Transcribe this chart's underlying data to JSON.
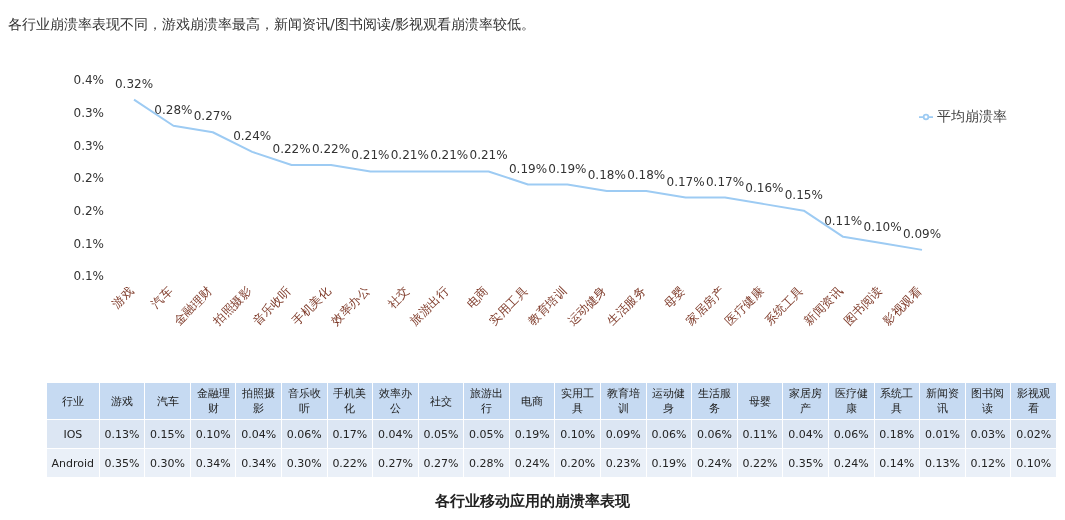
{
  "chart_data": [
    {
      "type": "line",
      "title": "各行业崩溃率表现不同，游戏崩溃率最高，新闻资讯/图书阅读/影视观看崩溃率较低。",
      "categories": [
        "游戏",
        "汽车",
        "金融理财",
        "拍照摄影",
        "音乐收听",
        "手机美化",
        "效率办公",
        "社交",
        "旅游出行",
        "电商",
        "实用工具",
        "教育培训",
        "运动健身",
        "生活服务",
        "母婴",
        "家居房产",
        "医疗健康",
        "系统工具",
        "新闻资讯",
        "图书阅读",
        "影视观看"
      ],
      "series": [
        {
          "name": "平均崩溃率",
          "color": "#9dcbf3",
          "values": [
            0.32,
            0.28,
            0.27,
            0.24,
            0.22,
            0.22,
            0.21,
            0.21,
            0.21,
            0.21,
            0.19,
            0.19,
            0.18,
            0.18,
            0.17,
            0.17,
            0.16,
            0.15,
            0.11,
            0.1,
            0.09
          ],
          "value_labels": [
            "0.32%",
            "0.28%",
            "0.27%",
            "0.24%",
            "0.22%",
            "0.22%",
            "0.21%",
            "0.21%",
            "0.21%",
            "0.21%",
            "0.19%",
            "0.19%",
            "0.18%",
            "0.18%",
            "0.17%",
            "0.17%",
            "0.16%",
            "0.15%",
            "0.11%",
            "0.10%",
            "0.09%"
          ]
        }
      ],
      "ylim": [
        0.05,
        0.35
      ],
      "yticks": [
        {
          "value": 0.05,
          "label": "0.1%"
        },
        {
          "value": 0.1,
          "label": "0.1%"
        },
        {
          "value": 0.15,
          "label": "0.2%"
        },
        {
          "value": 0.2,
          "label": "0.2%"
        },
        {
          "value": 0.25,
          "label": "0.3%"
        },
        {
          "value": 0.3,
          "label": "0.3%"
        },
        {
          "value": 0.35,
          "label": "0.4%"
        }
      ],
      "legend": "top right",
      "marker": "none",
      "line_style": "solid"
    },
    {
      "type": "other",
      "annotations": [
        "行业"
      ],
      "categories": [
        "游戏",
        "汽车",
        "金融理财",
        "拍照摄影",
        "音乐收听",
        "手机美化",
        "效率办公",
        "社交",
        "旅游出行",
        "电商",
        "实用工具",
        "教育培训",
        "运动健身",
        "生活服务",
        "母婴",
        "家居房产",
        "医疗健康",
        "系统工具",
        "新闻资讯",
        "图书阅读",
        "影视观看"
      ],
      "series": [
        {
          "name": "IOS",
          "values": [
            0.13,
            0.15,
            0.1,
            0.04,
            0.06,
            0.17,
            0.04,
            0.05,
            0.05,
            0.19,
            0.1,
            0.09,
            0.06,
            0.06,
            0.11,
            0.04,
            0.06,
            0.18,
            0.01,
            0.03,
            0.02
          ],
          "value_labels": [
            "0.13%",
            "0.15%",
            "0.10%",
            "0.04%",
            "0.06%",
            "0.17%",
            "0.04%",
            "0.05%",
            "0.05%",
            "0.19%",
            "0.10%",
            "0.09%",
            "0.06%",
            "0.06%",
            "0.11%",
            "0.04%",
            "0.06%",
            "0.18%",
            "0.01%",
            "0.03%",
            "0.02%"
          ]
        },
        {
          "name": "Android",
          "values": [
            0.35,
            0.3,
            0.34,
            0.34,
            0.3,
            0.22,
            0.27,
            0.27,
            0.28,
            0.24,
            0.2,
            0.23,
            0.19,
            0.24,
            0.22,
            0.35,
            0.24,
            0.14,
            0.13,
            0.12,
            0.1
          ],
          "value_labels": [
            "0.35%",
            "0.30%",
            "0.34%",
            "0.34%",
            "0.30%",
            "0.22%",
            "0.27%",
            "0.27%",
            "0.28%",
            "0.24%",
            "0.20%",
            "0.23%",
            "0.19%",
            "0.24%",
            "0.22%",
            "0.35%",
            "0.24%",
            "0.14%",
            "0.13%",
            "0.12%",
            "0.10%"
          ]
        }
      ],
      "subtitle": "各行业移动应用的崩溃率表现"
    }
  ]
}
